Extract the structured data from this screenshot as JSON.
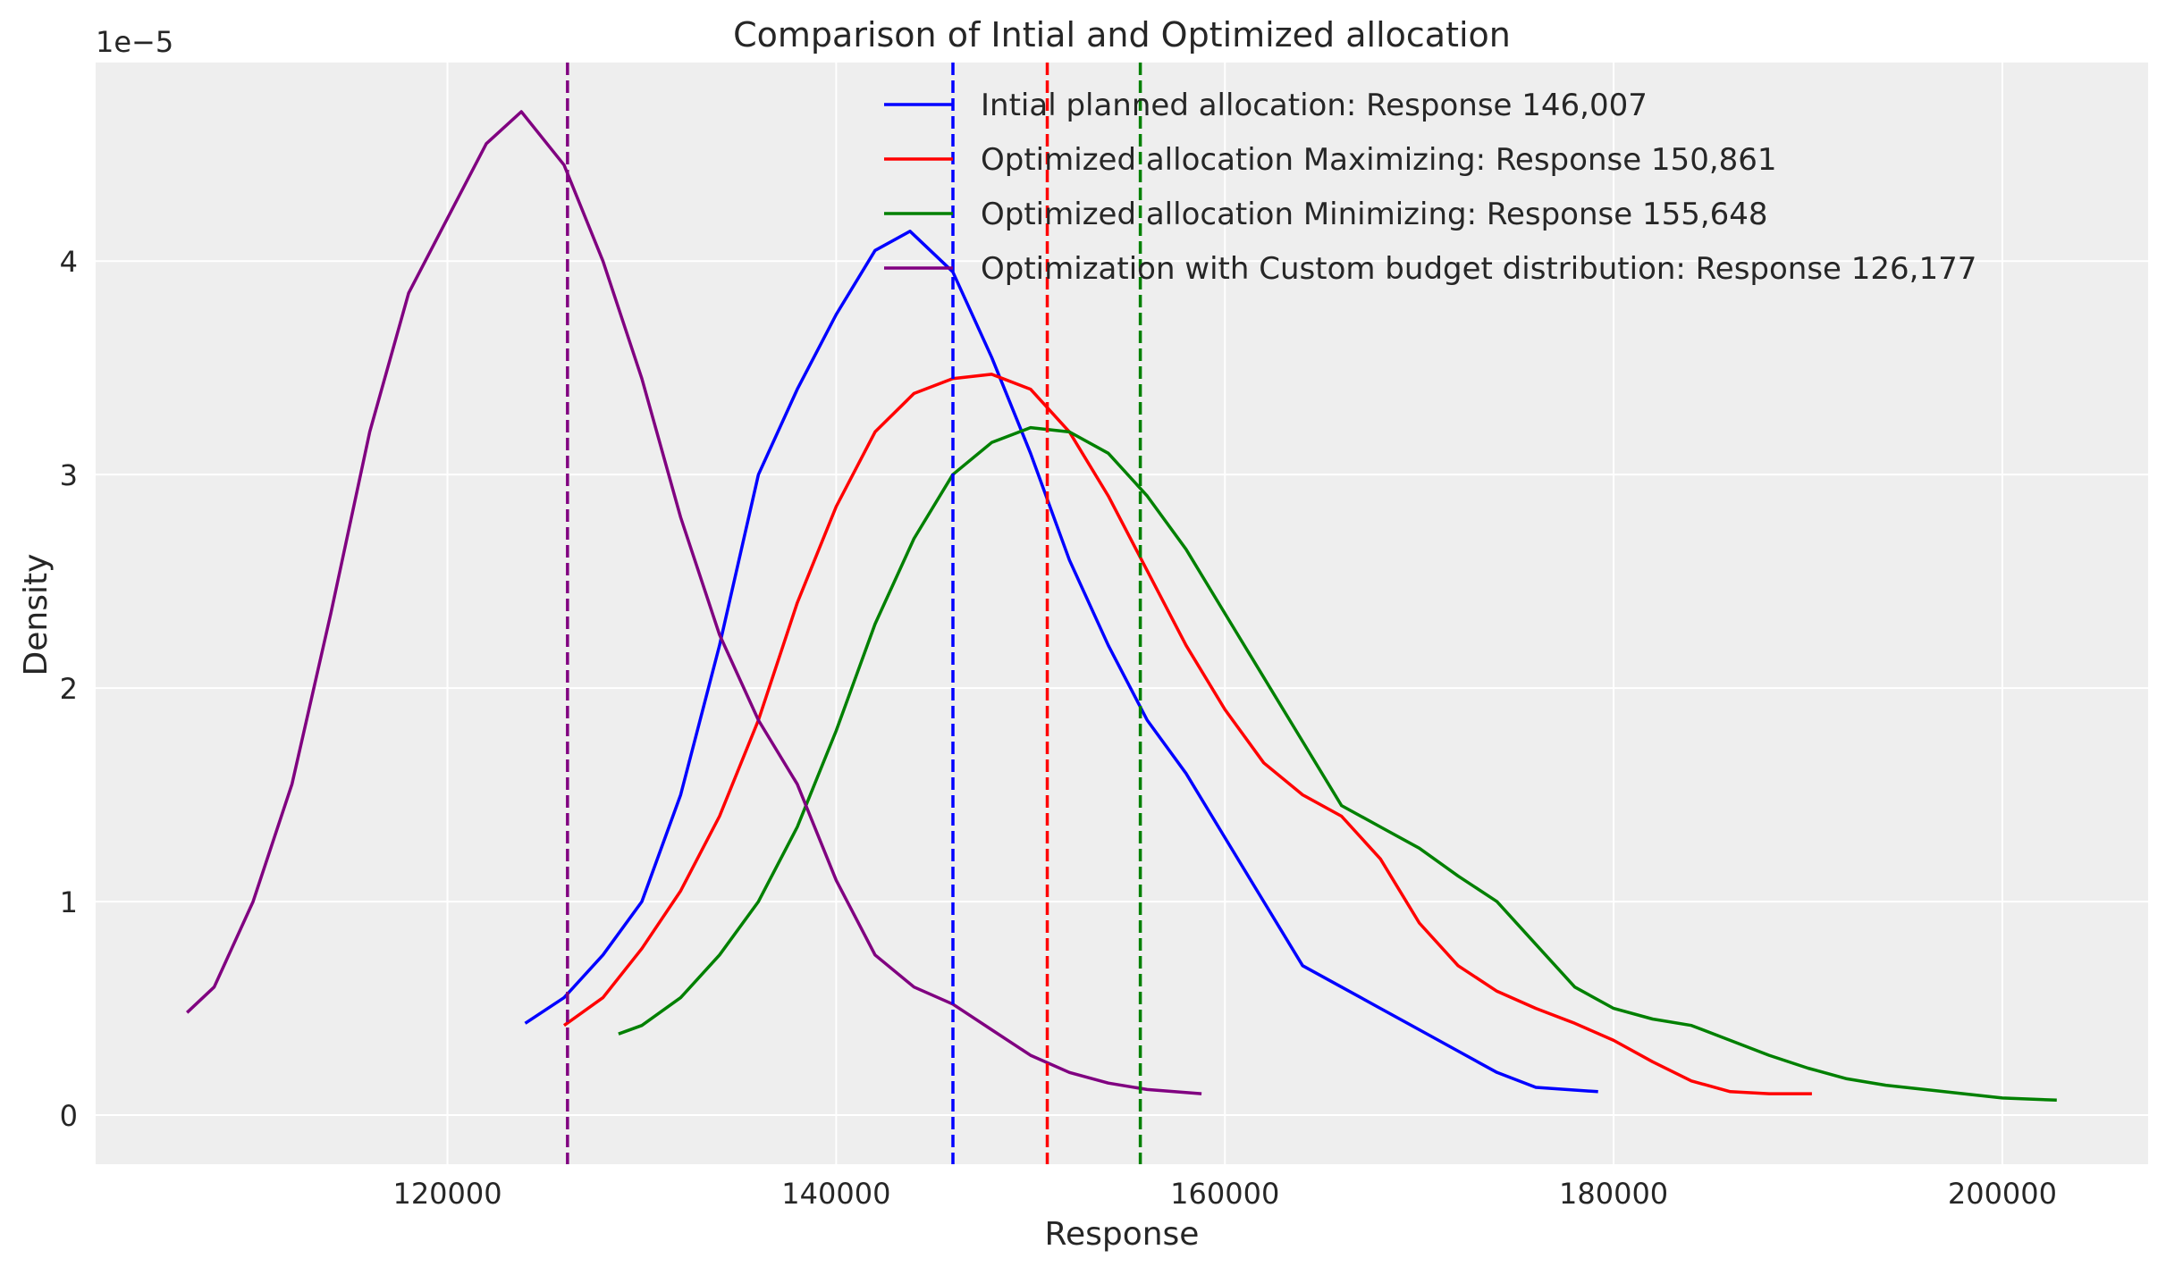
{
  "chart_data": {
    "type": "line",
    "title": "Comparison of Intial and Optimized allocation",
    "xlabel": "Response",
    "ylabel": "Density",
    "y_offset_label": "1e−5",
    "xlim": [
      101900,
      207500
    ],
    "ylim": [
      -0.23,
      4.93
    ],
    "x_ticks": [
      120000,
      140000,
      160000,
      180000,
      200000
    ],
    "x_tick_labels": [
      "120000",
      "140000",
      "160000",
      "180000",
      "200000"
    ],
    "y_ticks": [
      0,
      1,
      2,
      3,
      4
    ],
    "y_tick_labels": [
      "0",
      "1",
      "2",
      "3",
      "4"
    ],
    "y_scale_note": "values in units of 1e-5",
    "grid": true,
    "background": "#eeeeee",
    "legend_placement": "top-right",
    "series": [
      {
        "name": "Intial planned allocation: Response 146,007",
        "color": "#0000ff",
        "mean": 146007,
        "x": [
          124000,
          126000,
          128000,
          130000,
          132000,
          134000,
          136000,
          138000,
          140000,
          142000,
          143800,
          146000,
          148000,
          150000,
          152000,
          154000,
          156000,
          158000,
          160000,
          162000,
          164000,
          166000,
          168000,
          170000,
          172000,
          174000,
          176000,
          179200
        ],
        "y": [
          0.43,
          0.55,
          0.75,
          1.0,
          1.5,
          2.2,
          3.0,
          3.4,
          3.75,
          4.05,
          4.14,
          3.95,
          3.55,
          3.1,
          2.6,
          2.2,
          1.85,
          1.6,
          1.3,
          1.0,
          0.7,
          0.6,
          0.5,
          0.4,
          0.3,
          0.2,
          0.13,
          0.11
        ]
      },
      {
        "name": "Optimized allocation Maximizing: Response 150,861",
        "color": "#ff0000",
        "mean": 150861,
        "x": [
          126000,
          128000,
          130000,
          132000,
          134000,
          136000,
          138000,
          140000,
          142000,
          144000,
          146000,
          148000,
          150000,
          152000,
          154000,
          156000,
          158000,
          160000,
          162000,
          164000,
          166000,
          168000,
          170000,
          172000,
          174000,
          176000,
          178000,
          180000,
          182000,
          184000,
          186000,
          188000,
          190200
        ],
        "y": [
          0.42,
          0.55,
          0.78,
          1.05,
          1.4,
          1.85,
          2.4,
          2.85,
          3.2,
          3.38,
          3.45,
          3.47,
          3.4,
          3.2,
          2.9,
          2.55,
          2.2,
          1.9,
          1.65,
          1.5,
          1.4,
          1.2,
          0.9,
          0.7,
          0.58,
          0.5,
          0.43,
          0.35,
          0.25,
          0.16,
          0.11,
          0.1,
          0.1
        ]
      },
      {
        "name": "Optimized allocation Minimizing: Response 155,648",
        "color": "#008000",
        "mean": 155648,
        "x": [
          128800,
          130000,
          132000,
          134000,
          136000,
          138000,
          140000,
          142000,
          144000,
          146000,
          148000,
          150000,
          152000,
          154000,
          156000,
          158000,
          160000,
          162000,
          164000,
          166000,
          168000,
          170000,
          172000,
          174000,
          176000,
          178000,
          180000,
          182000,
          184000,
          186000,
          188000,
          190000,
          192000,
          194000,
          196000,
          198000,
          200000,
          202800
        ],
        "y": [
          0.38,
          0.42,
          0.55,
          0.75,
          1.0,
          1.35,
          1.8,
          2.3,
          2.7,
          3.0,
          3.15,
          3.22,
          3.2,
          3.1,
          2.9,
          2.65,
          2.35,
          2.05,
          1.75,
          1.45,
          1.35,
          1.25,
          1.12,
          1.0,
          0.8,
          0.6,
          0.5,
          0.45,
          0.42,
          0.35,
          0.28,
          0.22,
          0.17,
          0.14,
          0.12,
          0.1,
          0.08,
          0.07
        ]
      },
      {
        "name": "Optimization with Custom budget distribution: Response 126,177",
        "color": "#800080",
        "mean": 126177,
        "x": [
          106600,
          108000,
          110000,
          112000,
          114000,
          116000,
          118000,
          120000,
          122000,
          123800,
          126000,
          128000,
          130000,
          132000,
          134000,
          136000,
          138000,
          140000,
          142000,
          144000,
          146000,
          148000,
          150000,
          152000,
          154000,
          156000,
          158800
        ],
        "y": [
          0.48,
          0.6,
          1.0,
          1.55,
          2.35,
          3.2,
          3.85,
          4.2,
          4.55,
          4.7,
          4.45,
          4.0,
          3.45,
          2.8,
          2.25,
          1.85,
          1.55,
          1.1,
          0.75,
          0.6,
          0.52,
          0.4,
          0.28,
          0.2,
          0.15,
          0.12,
          0.1
        ]
      }
    ]
  }
}
